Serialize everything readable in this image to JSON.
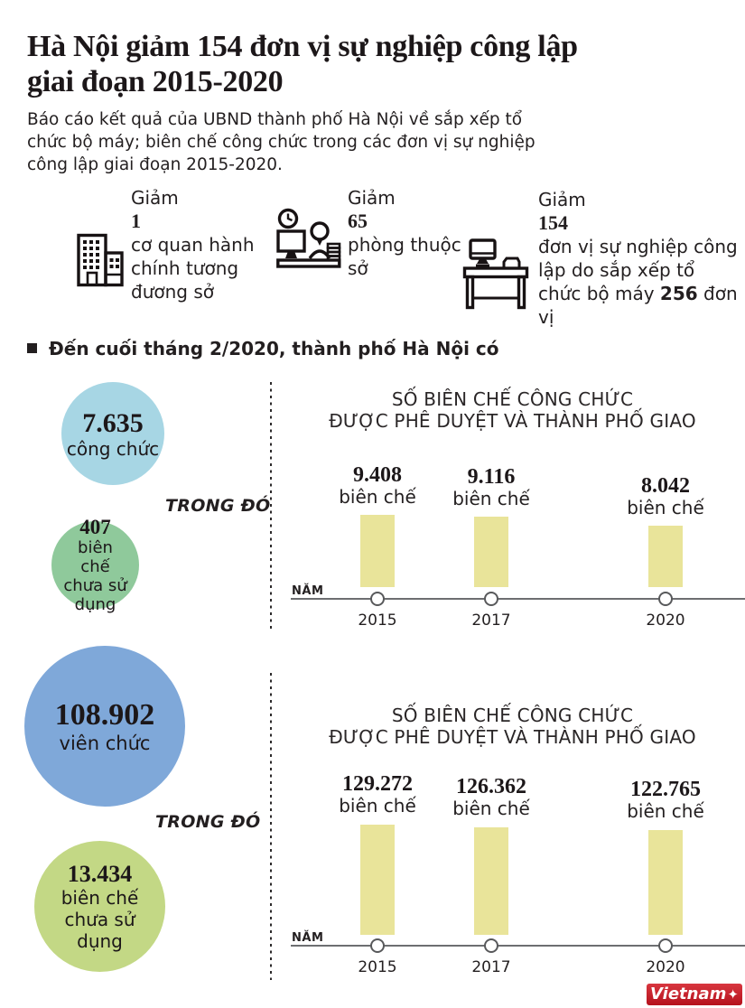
{
  "header": {
    "title_line1": "Hà Nội giảm 154 đơn vị sự nghiệp công lập",
    "title_line2": "giai đoạn 2015-2020",
    "subtitle": "Báo cáo kết quả của UBND thành phố Hà Nội về sắp xếp tổ chức bộ máy; biên chế công chức trong các đơn vị sự nghiệp công lập giai đoạn 2015-2020."
  },
  "stats": [
    {
      "icon": "building-icon",
      "label": "Giảm",
      "value": "1",
      "desc_pre": "cơ quan hành chính tương đương sở",
      "desc_bold": "",
      "desc_post": ""
    },
    {
      "icon": "clerk-desk-clock-icon",
      "label": "Giảm",
      "value": "65",
      "desc_pre": "phòng thuộc sở",
      "desc_bold": "",
      "desc_post": ""
    },
    {
      "icon": "office-desk-computer-icon",
      "label": "Giảm",
      "value": "154",
      "desc_pre": "đơn vị sự nghiệp công lập do sắp xếp tổ chức bộ máy ",
      "desc_bold": "256",
      "desc_post": " đơn vị"
    }
  ],
  "section_header": "Đến cuối tháng 2/2020, thành phố Hà Nội có",
  "groups": [
    {
      "main_circle": {
        "value": "7.635",
        "label": "công chức"
      },
      "note": "TRONG ĐÓ",
      "sub_circle": {
        "value": "407",
        "label": "biên chế chưa sử dụng"
      }
    },
    {
      "main_circle": {
        "value": "108.902",
        "label": "viên chức"
      },
      "note": "TRONG ĐÓ",
      "sub_circle": {
        "value": "13.434",
        "label": "biên chế chưa sử dụng"
      }
    }
  ],
  "chart_data": [
    {
      "type": "bar",
      "title": "SỐ BIÊN CHẾ CÔNG CHỨC ĐƯỢC PHÊ DUYỆT  VÀ THÀNH PHỐ GIAO",
      "title_lines": [
        "SỐ BIÊN CHẾ CÔNG CHỨC",
        "ĐƯỢC PHÊ DUYỆT  VÀ THÀNH PHỐ GIAO"
      ],
      "categories": [
        "2015",
        "2017",
        "2020"
      ],
      "values": [
        9408,
        9116,
        8042
      ],
      "value_labels": [
        "9.408",
        "9.116",
        "8.042"
      ],
      "unit_label": "biên chế",
      "xlabel": "NĂM",
      "ylim": [
        0,
        9408
      ],
      "grid": false,
      "legend": "none",
      "bar_color": "#e9e49a"
    },
    {
      "type": "bar",
      "title": "SỐ BIÊN CHẾ CÔNG CHỨC ĐƯỢC PHÊ DUYỆT  VÀ THÀNH PHỐ GIAO",
      "title_lines": [
        "SỐ BIÊN CHẾ CÔNG CHỨC",
        "ĐƯỢC PHÊ DUYỆT  VÀ THÀNH PHỐ GIAO"
      ],
      "categories": [
        "2015",
        "2017",
        "2020"
      ],
      "values": [
        129272,
        126362,
        122765
      ],
      "value_labels": [
        "129.272",
        "126.362",
        "122.765"
      ],
      "unit_label": "biên chế",
      "xlabel": "NĂM",
      "ylim": [
        0,
        129272
      ],
      "grid": false,
      "legend": "none",
      "bar_color": "#e9e49a"
    }
  ],
  "colors": {
    "main_circle_1": "#a7d6e4",
    "sub_circle_1": "#8fc99b",
    "main_circle_2": "#7fa8d9",
    "sub_circle_2": "#c3d885",
    "bar": "#e9e49a",
    "axis": "#6d6e71",
    "text": "#231f20",
    "logo_red": "#c4161c"
  },
  "footer": {
    "logo_text": "Vietnam",
    "logo_plus": "✦"
  }
}
